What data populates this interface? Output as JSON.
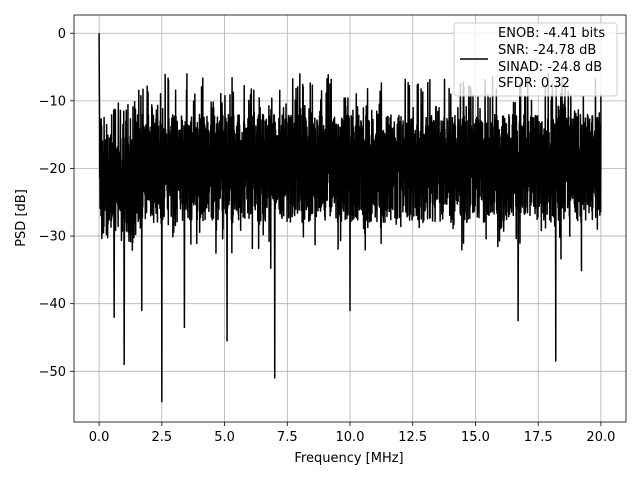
{
  "chart_data": {
    "type": "line",
    "title": "",
    "xlabel": "Frequency [MHz]",
    "ylabel": "PSD [dB]",
    "xlim": [
      -1.0,
      21.0
    ],
    "ylim": [
      -57.5,
      2.7
    ],
    "grid": true,
    "legend_placement": "top-right",
    "x_ticks": [
      0.0,
      2.5,
      5.0,
      7.5,
      10.0,
      12.5,
      15.0,
      17.5,
      20.0
    ],
    "x_tick_labels": [
      "0.0",
      "2.5",
      "5.0",
      "7.5",
      "10.0",
      "12.5",
      "15.0",
      "17.5",
      "20.0"
    ],
    "y_ticks": [
      0,
      -10,
      -20,
      -30,
      -40,
      -50
    ],
    "y_tick_labels": [
      "0",
      "−10",
      "−20",
      "−30",
      "−40",
      "−50"
    ],
    "series": [
      {
        "name": "ENOB: -4.41 bits\nSNR: -24.78 dB\nSINAD: -24.8 dB\nSFDR: 0.32",
        "color": "#000000",
        "x_range": [
          0.0,
          20.0
        ],
        "peak": {
          "x": 0.0,
          "y": 0.0
        },
        "noise_floor_band_db": [
          -28,
          -8
        ],
        "min": {
          "x": 2.5,
          "y": -54.5
        },
        "deep_nulls": [
          {
            "x": 0.6,
            "y": -42
          },
          {
            "x": 1.0,
            "y": -49
          },
          {
            "x": 1.7,
            "y": -41
          },
          {
            "x": 2.5,
            "y": -54.5
          },
          {
            "x": 3.4,
            "y": -43.5
          },
          {
            "x": 5.1,
            "y": -45.5
          },
          {
            "x": 7.0,
            "y": -51
          },
          {
            "x": 10.0,
            "y": -41
          },
          {
            "x": 16.7,
            "y": -42.5
          },
          {
            "x": 18.2,
            "y": -48.5
          }
        ]
      }
    ]
  },
  "legend": {
    "lines": [
      "ENOB: -4.41 bits",
      "SNR: -24.78 dB",
      "SINAD: -24.8 dB",
      "SFDR: 0.32"
    ]
  }
}
